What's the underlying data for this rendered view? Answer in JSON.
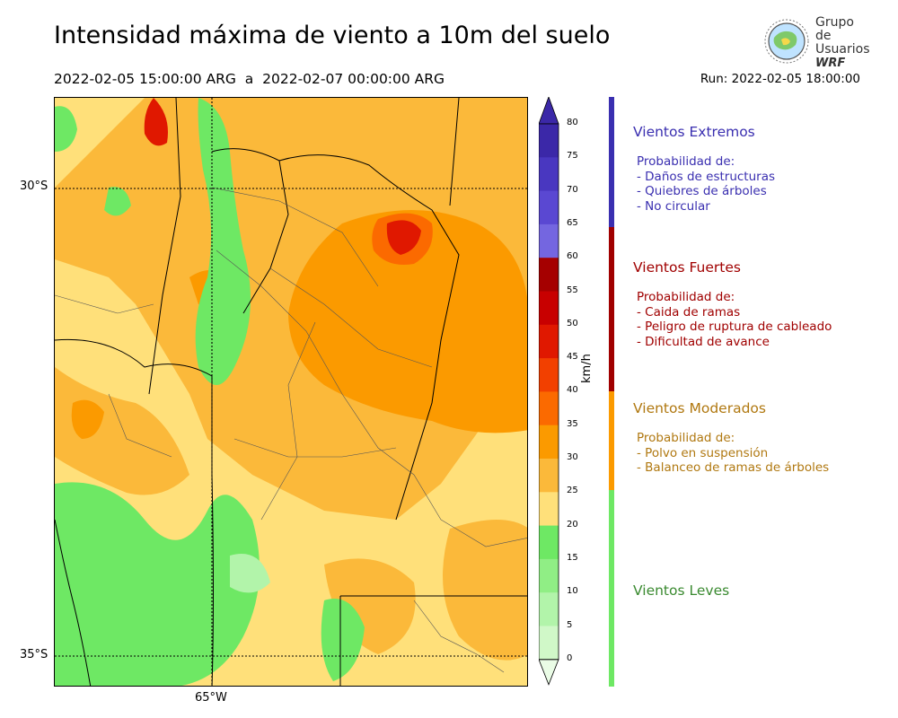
{
  "header": {
    "title": "Intensidad máxima de viento a 10m del suelo",
    "period": "2022-02-05 15:00:00 ARG  a  2022-02-07 00:00:00 ARG",
    "run": "Run: 2022-02-05 18:00:00"
  },
  "logo": {
    "line1": "Grupo de",
    "line2": "Usuarios",
    "line3": "WRF"
  },
  "map": {
    "lat_labels": [
      "30°S",
      "35°S"
    ],
    "lon_labels": [
      "65°W"
    ]
  },
  "colorbar": {
    "unit": "km/h",
    "ticks": [
      "80",
      "75",
      "70",
      "65",
      "60",
      "55",
      "50",
      "45",
      "40",
      "35",
      "30",
      "25",
      "20",
      "15",
      "10",
      "5",
      "0"
    ],
    "colors": [
      "#3b28a8",
      "#4937c0",
      "#5a48d2",
      "#7466e0",
      "#a50000",
      "#c80000",
      "#e01800",
      "#f24000",
      "#fb6a00",
      "#fb9a00",
      "#fbb93a",
      "#ffe07a",
      "#6ee864",
      "#90ee85",
      "#b2f4aa",
      "#d0f8c8",
      "#eafcE6"
    ]
  },
  "categories": [
    {
      "title": "Vientos Extremos",
      "color": "#3a2fb0",
      "desc": [
        "Probabilidad de:",
        "- Daños de estructuras",
        "- Quiebres de árboles",
        "- No circular"
      ]
    },
    {
      "title": "Vientos Fuertes",
      "color": "#a00000",
      "desc": [
        "Probabilidad de:",
        "- Caida de ramas",
        "- Peligro de ruptura de cableado",
        "- Dificultad de avance"
      ]
    },
    {
      "title": "Vientos Moderados",
      "color": "#b07810",
      "desc": [
        "Probabilidad de:",
        "- Polvo en suspensión",
        "- Balanceo de ramas de árboles"
      ]
    },
    {
      "title": "Vientos Leves",
      "color": "#3a8a30",
      "desc": []
    }
  ]
}
